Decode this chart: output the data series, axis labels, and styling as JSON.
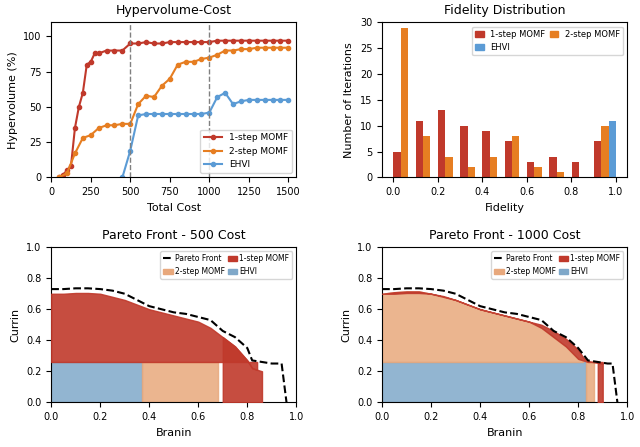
{
  "hv_cost": {
    "title": "Hypervolume-Cost",
    "xlabel": "Total Cost",
    "ylabel": "Hypervolume (%)",
    "vlines": [
      500,
      1000
    ],
    "momf1_x": [
      50,
      75,
      100,
      125,
      150,
      175,
      200,
      225,
      250,
      275,
      300,
      350,
      400,
      450,
      500,
      550,
      600,
      650,
      700,
      750,
      800,
      850,
      900,
      950,
      1000,
      1050,
      1100,
      1150,
      1200,
      1250,
      1300,
      1350,
      1400,
      1450,
      1500
    ],
    "momf1_y": [
      0,
      2,
      5,
      8,
      35,
      50,
      60,
      80,
      82,
      88,
      88,
      90,
      90,
      90,
      95,
      95,
      96,
      95,
      95,
      96,
      96,
      96,
      96,
      96,
      96,
      97,
      97,
      97,
      97,
      97,
      97,
      97,
      97,
      97,
      97
    ],
    "momf2_x": [
      50,
      100,
      150,
      200,
      250,
      300,
      350,
      400,
      450,
      500,
      550,
      600,
      650,
      700,
      750,
      800,
      850,
      900,
      950,
      1000,
      1050,
      1100,
      1150,
      1200,
      1250,
      1300,
      1350,
      1400,
      1450,
      1500
    ],
    "momf2_y": [
      0,
      3,
      17,
      28,
      30,
      35,
      37,
      37,
      38,
      38,
      52,
      58,
      57,
      65,
      70,
      80,
      82,
      82,
      84,
      85,
      87,
      90,
      90,
      91,
      91,
      92,
      92,
      92,
      92,
      92
    ],
    "ehvi_x": [
      450,
      500,
      550,
      600,
      650,
      700,
      750,
      800,
      850,
      900,
      950,
      1000,
      1050,
      1100,
      1150,
      1200,
      1250,
      1300,
      1350,
      1400,
      1450,
      1500
    ],
    "ehvi_y": [
      0,
      19,
      44,
      45,
      45,
      45,
      45,
      45,
      45,
      45,
      45,
      46,
      57,
      60,
      52,
      54,
      55,
      55,
      55,
      55,
      55,
      55
    ],
    "momf1_color": "#c0392b",
    "momf2_color": "#e67e22",
    "ehvi_color": "#5b9bd5",
    "ylim": [
      0,
      110
    ],
    "xlim": [
      0,
      1550
    ]
  },
  "fidelity": {
    "title": "Fidelity Distribution",
    "xlabel": "Fidelity",
    "ylabel": "Number of Iterations",
    "bin_centers": [
      0.05,
      0.15,
      0.25,
      0.35,
      0.45,
      0.55,
      0.65,
      0.75,
      0.85,
      0.95
    ],
    "momf1_counts": [
      5,
      11,
      13,
      10,
      9,
      7,
      3,
      4,
      3,
      7
    ],
    "momf2_counts": [
      29,
      8,
      4,
      2,
      4,
      8,
      2,
      1,
      0,
      10
    ],
    "ehvi_counts": [
      0,
      0,
      0,
      0,
      0,
      0,
      0,
      0,
      0,
      11
    ],
    "momf1_color": "#c0392b",
    "momf2_color": "#e67e22",
    "ehvi_color": "#5b9bd5",
    "ylim": [
      0,
      30
    ],
    "bar_width": 0.033
  },
  "pareto500": {
    "title": "Pareto Front - 500 Cost",
    "xlabel": "Branin",
    "ylabel": "Currin",
    "xlim": [
      0.0,
      1.0
    ],
    "ylim": [
      0.0,
      1.0
    ],
    "pareto_x": [
      0.0,
      0.05,
      0.1,
      0.15,
      0.2,
      0.25,
      0.3,
      0.35,
      0.4,
      0.45,
      0.5,
      0.55,
      0.6,
      0.65,
      0.7,
      0.75,
      0.8,
      0.82,
      0.84,
      0.86,
      0.88,
      0.9,
      0.92,
      0.94,
      0.96
    ],
    "pareto_y": [
      0.73,
      0.73,
      0.735,
      0.735,
      0.73,
      0.72,
      0.7,
      0.66,
      0.62,
      0.6,
      0.58,
      0.57,
      0.55,
      0.53,
      0.46,
      0.42,
      0.35,
      0.27,
      0.265,
      0.26,
      0.255,
      0.25,
      0.25,
      0.25,
      0.0
    ],
    "momf1_front_x": [
      0.0,
      0.05,
      0.1,
      0.15,
      0.2,
      0.25,
      0.3,
      0.35,
      0.4,
      0.45,
      0.5,
      0.55,
      0.6,
      0.65,
      0.7,
      0.75,
      0.8,
      0.82,
      0.84,
      0.86
    ],
    "momf1_front_y": [
      0.7,
      0.7,
      0.705,
      0.705,
      0.7,
      0.68,
      0.66,
      0.63,
      0.6,
      0.58,
      0.56,
      0.54,
      0.52,
      0.48,
      0.42,
      0.36,
      0.27,
      0.22,
      0.21,
      0.2
    ],
    "momf1_bot_y": 0.26,
    "momf1_drop_x": 0.84,
    "ehvi_x1": 0.0,
    "ehvi_x2": 0.37,
    "ehvi_y1": 0.0,
    "ehvi_y2": 0.26,
    "momf2_x1": 0.37,
    "momf2_x2": 0.68,
    "momf2_y1": 0.0,
    "momf2_y2": 0.26,
    "momf1_color": "#c0392b",
    "momf2_color": "#e8a87c",
    "ehvi_color": "#7fa8c9"
  },
  "pareto1000": {
    "title": "Pareto Front - 1000 Cost",
    "xlabel": "Branin",
    "ylabel": "Currin",
    "xlim": [
      0.0,
      1.0
    ],
    "ylim": [
      0.0,
      1.0
    ],
    "pareto_x": [
      0.0,
      0.05,
      0.1,
      0.15,
      0.2,
      0.25,
      0.3,
      0.35,
      0.4,
      0.45,
      0.5,
      0.55,
      0.6,
      0.65,
      0.7,
      0.75,
      0.8,
      0.84,
      0.86,
      0.88,
      0.9,
      0.92,
      0.94,
      0.96
    ],
    "pareto_y": [
      0.73,
      0.73,
      0.735,
      0.735,
      0.73,
      0.72,
      0.7,
      0.66,
      0.62,
      0.6,
      0.58,
      0.57,
      0.55,
      0.53,
      0.46,
      0.42,
      0.35,
      0.27,
      0.265,
      0.26,
      0.255,
      0.25,
      0.25,
      0.0
    ],
    "momf2_front_x": [
      0.0,
      0.05,
      0.1,
      0.15,
      0.2,
      0.25,
      0.3,
      0.35,
      0.4,
      0.45,
      0.5,
      0.55,
      0.6,
      0.65,
      0.7,
      0.75,
      0.8,
      0.82
    ],
    "momf2_front_y": [
      0.7,
      0.71,
      0.715,
      0.715,
      0.7,
      0.68,
      0.66,
      0.63,
      0.6,
      0.58,
      0.56,
      0.54,
      0.52,
      0.48,
      0.42,
      0.36,
      0.28,
      0.27
    ],
    "momf1_front_x": [
      0.0,
      0.05,
      0.1,
      0.15,
      0.2,
      0.25,
      0.3,
      0.35,
      0.4,
      0.45,
      0.5,
      0.55,
      0.6,
      0.65,
      0.7,
      0.75,
      0.8,
      0.82,
      0.84,
      0.86,
      0.88,
      0.9
    ],
    "momf1_front_y": [
      0.7,
      0.7,
      0.705,
      0.705,
      0.7,
      0.685,
      0.66,
      0.63,
      0.6,
      0.58,
      0.56,
      0.54,
      0.52,
      0.5,
      0.46,
      0.41,
      0.34,
      0.29,
      0.265,
      0.26,
      0.255,
      0.25
    ],
    "ehvi_x2": 0.83,
    "ehvi_y2": 0.26,
    "momf2_x1_strip": 0.83,
    "momf2_x2_strip": 0.865,
    "momf2_y2_strip": 0.26,
    "momf1_x1_strip": 0.865,
    "momf1_x2_strip": 0.93,
    "momf1_color": "#c0392b",
    "momf2_color": "#e8a87c",
    "ehvi_color": "#7fa8c9"
  }
}
